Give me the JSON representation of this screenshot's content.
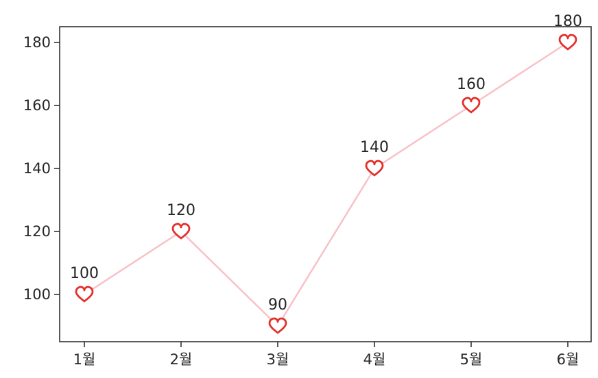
{
  "chart_data": {
    "type": "line",
    "categories": [
      "1월",
      "2월",
      "3월",
      "4월",
      "5월",
      "6월"
    ],
    "series": [
      {
        "values": [
          100,
          120,
          90,
          140,
          160,
          180
        ]
      }
    ],
    "data_labels": [
      "100",
      "120",
      "90",
      "140",
      "160",
      "180"
    ],
    "y_ticks": [
      100,
      120,
      140,
      160,
      180
    ],
    "ylim": [
      85,
      185
    ],
    "grid": false,
    "marker": "heart",
    "line_color": "#f7c1c8",
    "marker_color": "#e3302b"
  }
}
